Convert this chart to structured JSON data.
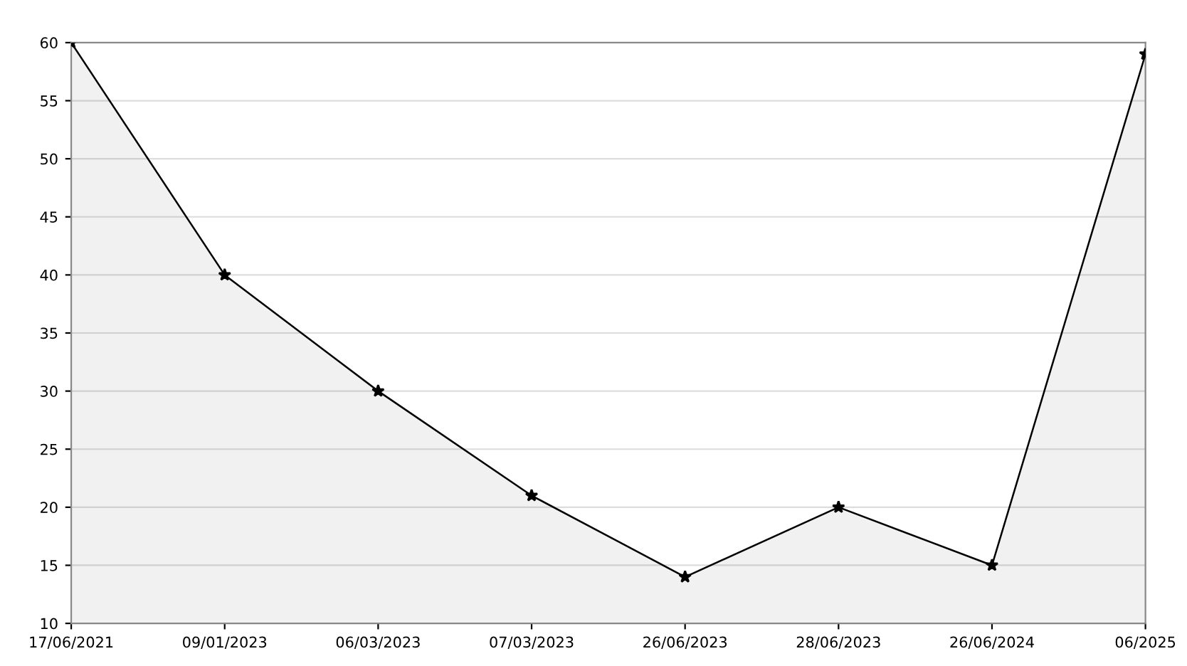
{
  "chart_data": {
    "type": "area",
    "categories": [
      "17/06/2021",
      "09/01/2023",
      "06/03/2023",
      "07/03/2023",
      "26/06/2023",
      "28/06/2023",
      "26/06/2024",
      "06/2025"
    ],
    "series": [
      {
        "color": "#000000",
        "values": [
          60,
          40,
          30,
          21,
          14,
          20,
          15,
          59
        ]
      }
    ],
    "ylim": [
      10,
      60
    ],
    "yticks": [
      10,
      15,
      20,
      25,
      30,
      35,
      40,
      45,
      50,
      55,
      60
    ],
    "grid": "y",
    "marker": "star",
    "line_style": "solid"
  }
}
